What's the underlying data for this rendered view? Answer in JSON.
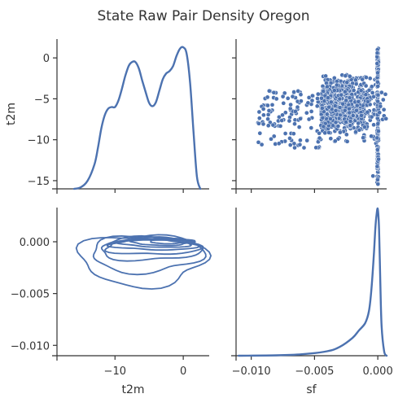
{
  "chart_data": {
    "type": "pairgrid",
    "title": "State Raw Pair Density Oregon",
    "color": "#4c72b0",
    "variables": [
      "t2m",
      "sf"
    ],
    "panels": [
      {
        "id": "t2m-diag",
        "type": "kde",
        "xlim": [
          -18.5,
          3.8
        ],
        "ylim": [
          -16,
          2.3
        ],
        "ylabel": "t2m",
        "yticks": [
          0,
          -5,
          -10,
          -15
        ],
        "ytick_labels": [
          "0",
          "−5",
          "−10",
          "−15"
        ],
        "xticks": [
          -10,
          0
        ],
        "show_xtick_labels": false,
        "curve_x": [
          -16.0,
          -15.0,
          -14.0,
          -13.0,
          -12.5,
          -12.0,
          -11.5,
          -11.0,
          -10.5,
          -10.0,
          -9.5,
          -9.0,
          -8.5,
          -8.0,
          -7.5,
          -7.0,
          -6.5,
          -6.0,
          -5.5,
          -5.0,
          -4.5,
          -4.0,
          -3.5,
          -3.0,
          -2.5,
          -2.0,
          -1.5,
          -1.0,
          -0.5,
          0.0,
          0.5,
          1.0,
          1.5,
          2.0,
          2.5
        ],
        "curve_y": [
          -16.0,
          -15.8,
          -15.0,
          -13.0,
          -11.0,
          -8.6,
          -7.0,
          -6.2,
          -6.0,
          -6.0,
          -5.2,
          -3.8,
          -2.2,
          -1.0,
          -0.5,
          -0.5,
          -1.3,
          -2.8,
          -4.2,
          -5.5,
          -5.9,
          -5.4,
          -4.0,
          -2.6,
          -1.9,
          -1.6,
          -1.0,
          0.2,
          1.1,
          1.3,
          0.5,
          -3.0,
          -9.0,
          -14.5,
          -16.0
        ]
      },
      {
        "id": "sf-vs-t2m",
        "type": "scatter",
        "xlim": [
          -0.0112,
          0.0007
        ],
        "ylim": [
          -16,
          2.3
        ],
        "xticks": [
          -0.01,
          -0.005,
          0.0
        ],
        "show_xtick_labels": false,
        "yticks": [
          0,
          -5,
          -10,
          -15
        ],
        "show_ytick_labels": false,
        "cluster": {
          "x_min": -0.0045,
          "x_max": 0.0,
          "y_min": -15.5,
          "y_max": -2.0
        },
        "outliers_x_range": [
          -0.0095,
          -0.0045
        ],
        "outliers_y_range": [
          -11.0,
          -4.0
        ],
        "spike_x": 0.0,
        "spike_y_range": [
          -15.5,
          1.2
        ],
        "right_tail_x_range": [
          0.0,
          0.0025
        ],
        "right_tail_y_range": [
          -8.0,
          -4.0
        ]
      },
      {
        "id": "t2m-vs-sf",
        "type": "kde2d",
        "xlim": [
          -18.5,
          3.8
        ],
        "ylim": [
          -0.011,
          0.0033
        ],
        "xticks": [
          -10,
          0
        ],
        "xtick_labels": [
          "−10",
          "0"
        ],
        "xlabel": "t2m",
        "yticks": [
          0.0,
          -0.005,
          -0.01
        ],
        "ytick_labels": [
          "0.000",
          "−0.005",
          "−0.010"
        ],
        "levels": [
          {
            "cx": -6.0,
            "cy": -0.0017,
            "rx": 9.2,
            "ry": 0.0025
          },
          {
            "cx": -5.5,
            "cy": -0.0012,
            "rx": 8.2,
            "ry": 0.0017
          },
          {
            "cx": -5.0,
            "cy": -0.0007,
            "rx": 7.4,
            "ry": 0.0011
          },
          {
            "cx": -4.5,
            "cy": -0.00045,
            "rx": 6.8,
            "ry": 0.0008
          },
          {
            "cx": -4.0,
            "cy": -0.00025,
            "rx": 6.2,
            "ry": 0.00055
          },
          {
            "cx": -3.5,
            "cy": -0.00012,
            "rx": 5.4,
            "ry": 0.0004
          },
          {
            "cx": -3.0,
            "cy": -5e-05,
            "rx": 4.4,
            "ry": 0.00028
          },
          {
            "cx": -2.0,
            "cy": 0.0,
            "rx": 3.0,
            "ry": 0.00017
          }
        ]
      },
      {
        "id": "sf-diag",
        "type": "kde",
        "xlim": [
          -0.0112,
          0.0007
        ],
        "ylim": [
          0.0,
          1.0
        ],
        "xticks": [
          -0.01,
          -0.005,
          0.0
        ],
        "xtick_labels": [
          "−0.010",
          "−0.005",
          "0.000"
        ],
        "xlabel": "sf",
        "curve_x": [
          -0.011,
          -0.008,
          -0.006,
          -0.004,
          -0.003,
          -0.002,
          -0.0015,
          -0.001,
          -0.0007,
          -0.0005,
          -0.0003,
          -0.0002,
          -0.0001,
          0.0,
          0.0001,
          0.0002,
          0.0003,
          0.0005,
          0.0007
        ],
        "curve_y": [
          0.0,
          0.003,
          0.01,
          0.03,
          0.06,
          0.12,
          0.17,
          0.22,
          0.3,
          0.45,
          0.7,
          0.85,
          0.95,
          0.99,
          0.85,
          0.5,
          0.2,
          0.03,
          0.0
        ]
      }
    ]
  }
}
